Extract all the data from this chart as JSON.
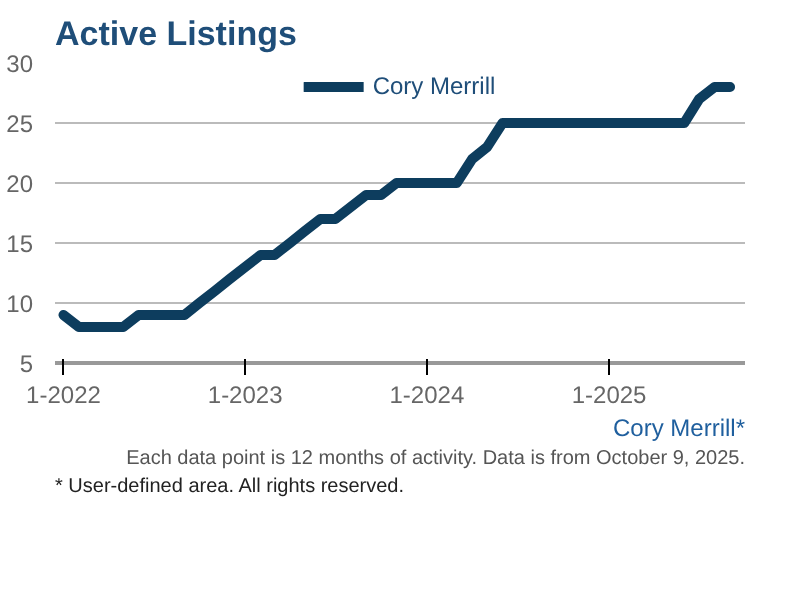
{
  "chart_data": {
    "type": "line",
    "title": "Active Listings",
    "x": [
      "2022-01",
      "2022-02",
      "2022-03",
      "2022-04",
      "2022-05",
      "2022-06",
      "2022-07",
      "2022-08",
      "2022-09",
      "2022-10",
      "2022-11",
      "2022-12",
      "2023-01",
      "2023-02",
      "2023-03",
      "2023-04",
      "2023-05",
      "2023-06",
      "2023-07",
      "2023-08",
      "2023-09",
      "2023-10",
      "2023-11",
      "2023-12",
      "2024-01",
      "2024-02",
      "2024-03",
      "2024-04",
      "2024-05",
      "2024-06",
      "2024-07",
      "2024-08",
      "2024-09",
      "2024-10",
      "2024-11",
      "2024-12",
      "2025-01",
      "2025-02",
      "2025-03",
      "2025-04",
      "2025-05",
      "2025-06",
      "2025-07",
      "2025-08",
      "2025-09"
    ],
    "series": [
      {
        "name": "Cory Merrill",
        "color": "#0d3d5e",
        "values": [
          9,
          8,
          8,
          8,
          8,
          9,
          9,
          9,
          9,
          10,
          11,
          12,
          13,
          14,
          14,
          15,
          16,
          17,
          17,
          18,
          19,
          19,
          20,
          20,
          20,
          20,
          20,
          22,
          23,
          25,
          25,
          25,
          25,
          25,
          25,
          25,
          25,
          25,
          25,
          25,
          25,
          25,
          27,
          28,
          28
        ]
      }
    ],
    "xlim": [
      "2021-12-15",
      "2025-10-01"
    ],
    "xticks": [
      {
        "value": "2022-01",
        "label": "1-2022"
      },
      {
        "value": "2023-01",
        "label": "1-2023"
      },
      {
        "value": "2024-01",
        "label": "1-2024"
      },
      {
        "value": "2025-01",
        "label": "1-2025"
      }
    ],
    "ylim": [
      5,
      30
    ],
    "yticks": [
      5,
      10,
      15,
      20,
      25,
      30
    ],
    "grid": "y",
    "legend": "top",
    "marker": "none",
    "line_style": "solid",
    "annotations": [
      "Cory Merrill*",
      "Each data point is 12 months of activity. Data is from October 9, 2025.",
      "* User-defined area. All rights reserved."
    ]
  }
}
